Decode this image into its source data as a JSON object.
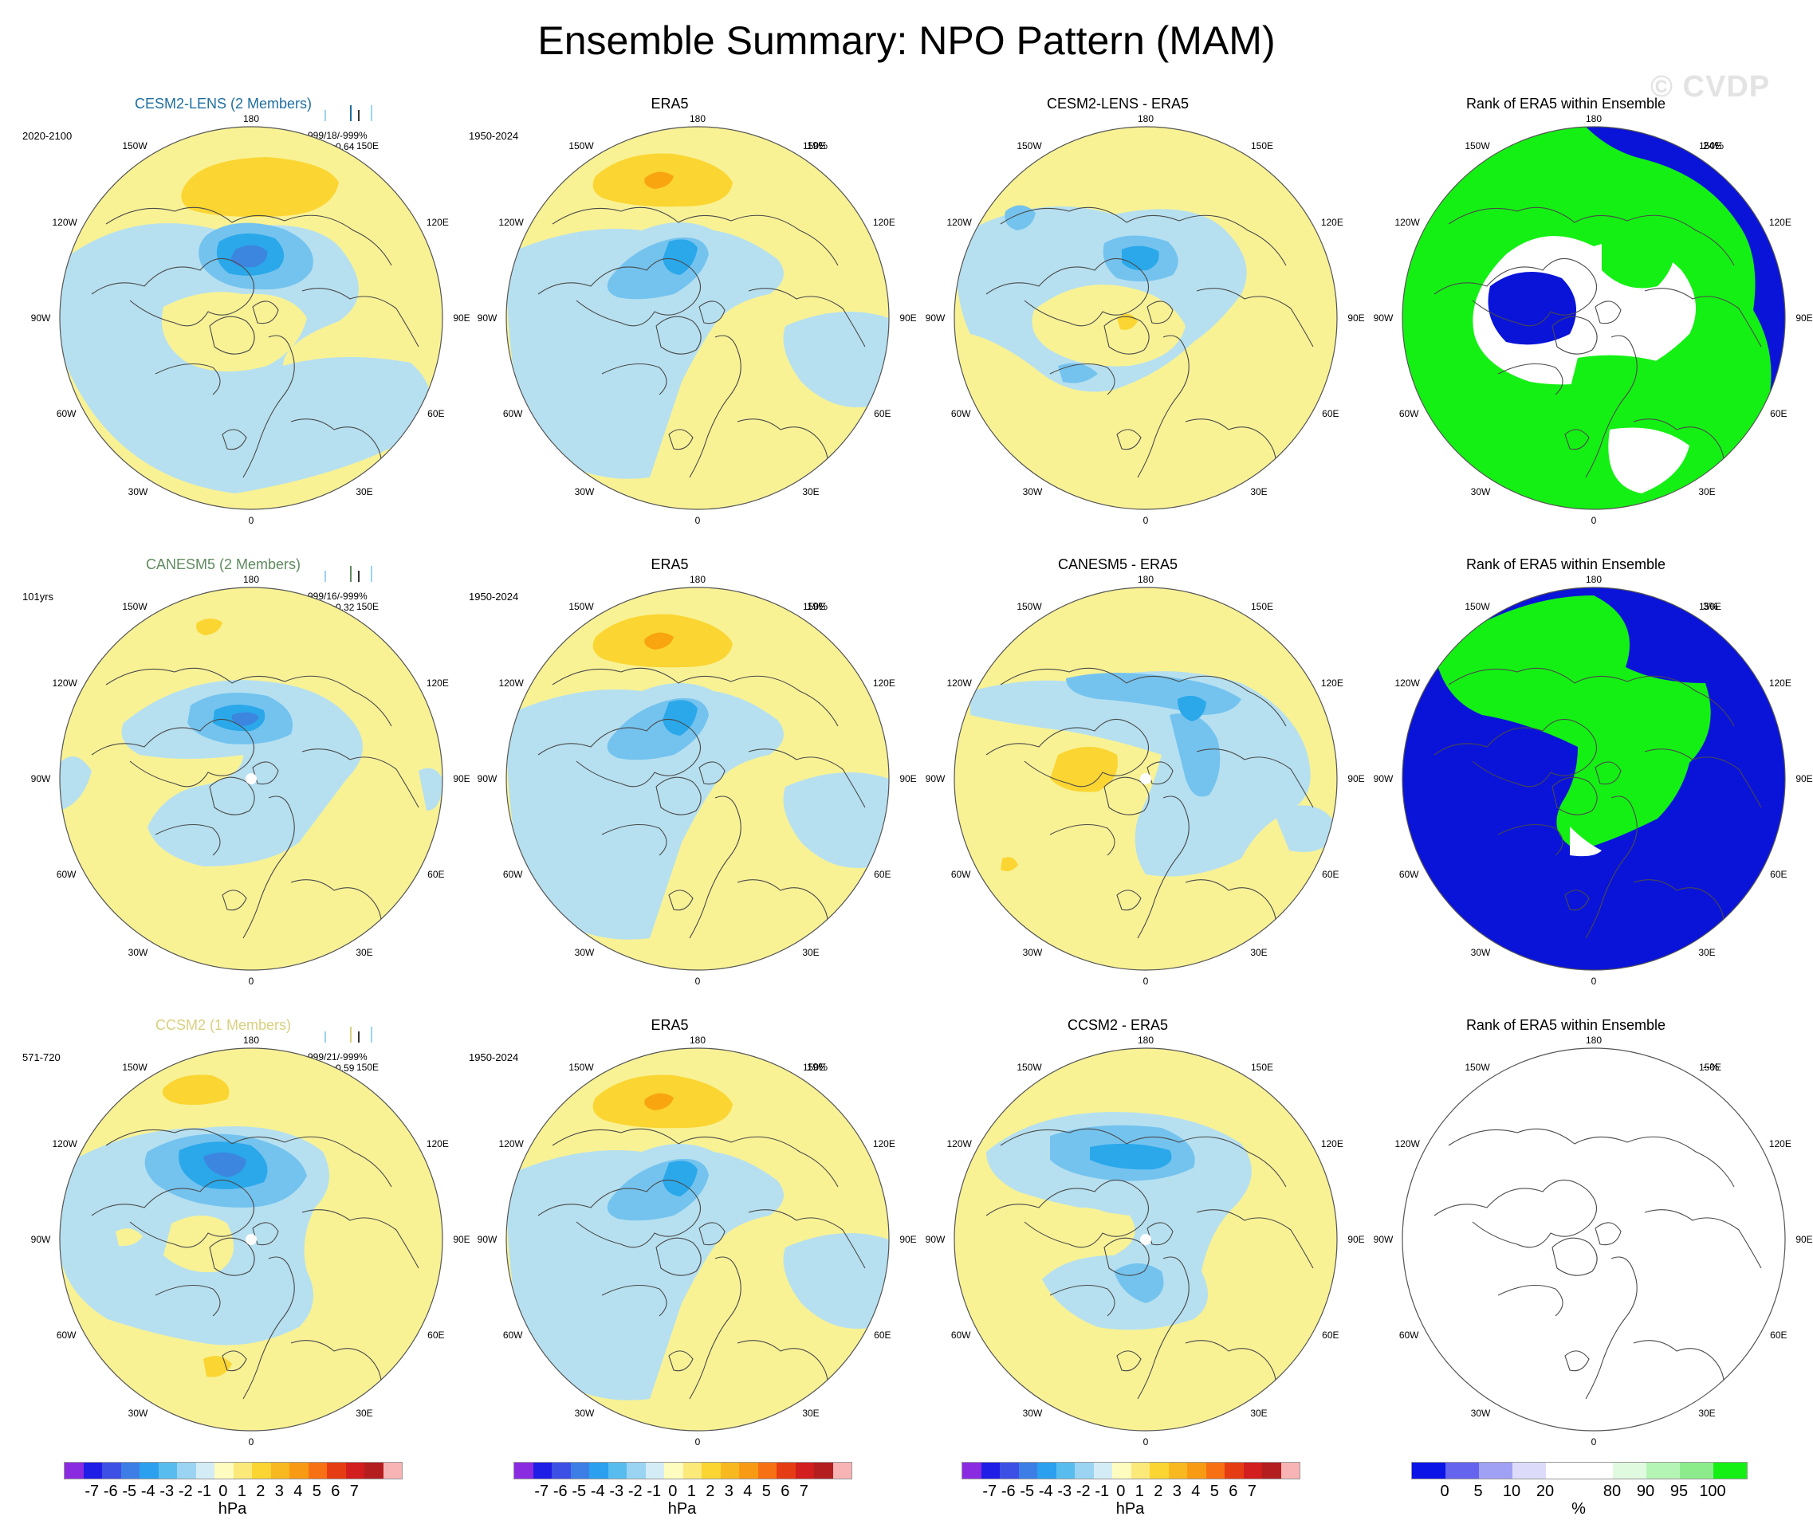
{
  "title": "Ensemble Summary: NPO Pattern (MAM)",
  "watermark": "© CVDP",
  "colors": {
    "neg1": "#b6e0f0",
    "neg2": "#74c3ef",
    "neg3": "#2aa8ea",
    "neg4": "#3c86e0",
    "pos1": "#f8f295",
    "pos2": "#fbd532",
    "pos3": "#f8a510",
    "rank_low": "#0a14d8",
    "rank_high": "#14f014",
    "coast": "#4a4a4a",
    "mid": "#ffffff"
  },
  "lon_labels": {
    "n": "180",
    "nne": "150E",
    "ene": "120E",
    "e": "90E",
    "ese": "60E",
    "sse": "30E",
    "s": "0",
    "ssw": "30W",
    "wsw": "60W",
    "w": "90W",
    "wnw": "120W",
    "nnw": "150W"
  },
  "rows": [
    {
      "model": {
        "title": "CESM2-LENS (2 Members)",
        "title_color": "#1e6ea0",
        "period": "2020-2100",
        "stats1": "-999/18/-999%",
        "stats2": "150Er=0.64"
      },
      "obs": {
        "title": "ERA5",
        "period": "1950-2024",
        "pct": "19%"
      },
      "diff": {
        "title": "CESM2-LENS - ERA5"
      },
      "rank": {
        "title": "Rank of ERA5 within Ensemble",
        "pct": "24%"
      }
    },
    {
      "model": {
        "title": "CANESM5 (2 Members)",
        "title_color": "#5f8a5f",
        "period": "101yrs",
        "stats1": "-999/16/-999%",
        "stats2": "150Er=0.32"
      },
      "obs": {
        "title": "ERA5",
        "period": "1950-2024",
        "pct": "19%"
      },
      "diff": {
        "title": "CANESM5 - ERA5"
      },
      "rank": {
        "title": "Rank of ERA5 within Ensemble",
        "pct": "3%"
      }
    },
    {
      "model": {
        "title": "CCSM2 (1 Members)",
        "title_color": "#d8d080",
        "period": "571-720",
        "stats1": "-999/21/-999%",
        "stats2": "150Er=0.59"
      },
      "obs": {
        "title": "ERA5",
        "period": "1950-2024",
        "pct": "19%"
      },
      "diff": {
        "title": "CCSM2 - ERA5"
      },
      "rank": {
        "title": "Rank of ERA5 within Ensemble",
        "pct": "--%"
      }
    }
  ],
  "colorbars": {
    "hpa": {
      "colors": [
        "#8a2be2",
        "#1e1ee6",
        "#3c50e6",
        "#3c7ee6",
        "#2aa0ee",
        "#58bdee",
        "#9ad4f2",
        "#d4ecf6",
        "#fffcc0",
        "#fbe97a",
        "#fbd532",
        "#f8b820",
        "#f89a14",
        "#f87014",
        "#e63c14",
        "#d21e1e",
        "#b41e1e",
        "#f8b4b4"
      ],
      "labels": [
        "-7",
        "-6",
        "-5",
        "-4",
        "-3",
        "-2",
        "-1",
        "0",
        "1",
        "2",
        "3",
        "4",
        "5",
        "6",
        "7"
      ],
      "unit": "hPa"
    },
    "pct": {
      "colors": [
        "#0a14e6",
        "#6464ee",
        "#a0a0f4",
        "#dcdcfa",
        "#ffffff",
        "#ffffff",
        "#e0fae0",
        "#b4f4b4",
        "#8cec8c",
        "#14f014"
      ],
      "labels": [
        "0",
        "5",
        "10",
        "20",
        "80",
        "90",
        "95",
        "100"
      ],
      "unit": "%"
    }
  }
}
